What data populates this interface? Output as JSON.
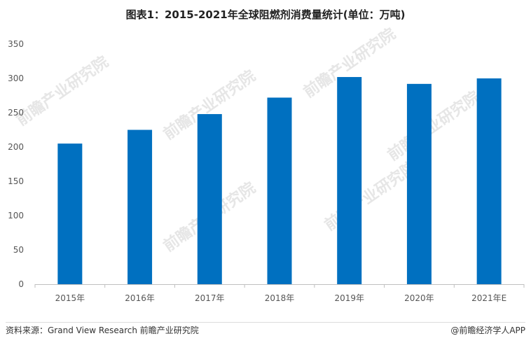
{
  "chart_data": {
    "type": "bar",
    "title": "图表1：2015-2021年全球阻燃剂消费量统计(单位：万吨)",
    "categories": [
      "2015年",
      "2016年",
      "2017年",
      "2018年",
      "2019年",
      "2020年",
      "2021年E"
    ],
    "values": [
      205,
      225,
      248,
      272,
      302,
      292,
      300
    ],
    "ylim": [
      0,
      350
    ],
    "yticks": [
      0,
      50,
      100,
      150,
      200,
      250,
      300,
      350
    ],
    "xlabel": "",
    "ylabel": "",
    "grid": false,
    "bar_color": "#0070c0"
  },
  "footer": {
    "source": "资料来源：Grand View Research 前瞻产业研究院",
    "copyright": "@前瞻经济学人APP"
  },
  "watermark": {
    "text": "前瞻产业研究院"
  }
}
